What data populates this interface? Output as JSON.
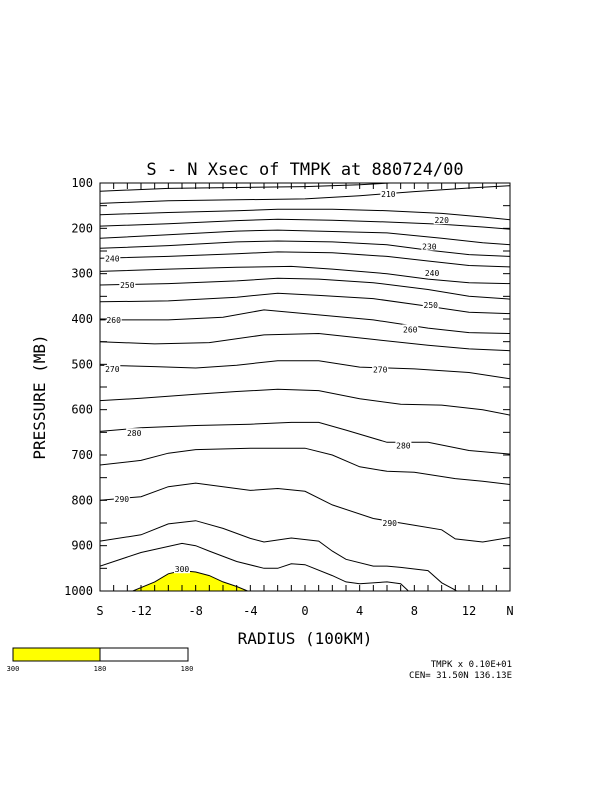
{
  "chart_data": {
    "type": "contour",
    "title": "S - N Xsec of TMPK at 880724/00",
    "xlabel": "RADIUS (100KM)",
    "ylabel": "PRESSURE (MB)",
    "x_ticks": [
      {
        "value": -15,
        "label": "S"
      },
      {
        "value": -12,
        "label": "-12"
      },
      {
        "value": -8,
        "label": "-8"
      },
      {
        "value": -4,
        "label": "-4"
      },
      {
        "value": 0,
        "label": "0"
      },
      {
        "value": 4,
        "label": "4"
      },
      {
        "value": 8,
        "label": "8"
      },
      {
        "value": 12,
        "label": "12"
      },
      {
        "value": 15,
        "label": "N"
      }
    ],
    "y_ticks": [
      100,
      200,
      300,
      400,
      500,
      600,
      700,
      800,
      900,
      1000
    ],
    "xlim": [
      -15,
      15
    ],
    "ylim": [
      1000,
      100
    ],
    "grid": false,
    "fill_above": 300,
    "fill_color": "#ffff00",
    "contours": [
      {
        "level": 210,
        "points": [
          [
            -15,
            118
          ],
          [
            -10,
            112
          ],
          [
            -5,
            110
          ],
          [
            0,
            108
          ],
          [
            4,
            104
          ],
          [
            8,
            97
          ],
          [
            11,
            91
          ],
          [
            15,
            86
          ]
        ]
      },
      {
        "level": null,
        "points": [
          [
            -15,
            145
          ],
          [
            -10,
            139
          ],
          [
            -5,
            137
          ],
          [
            0,
            135
          ],
          [
            4,
            128
          ],
          [
            8,
            119
          ],
          [
            12,
            111
          ],
          [
            15,
            106
          ]
        ]
      },
      {
        "level": 220,
        "points": [
          [
            -15,
            170
          ],
          [
            -10,
            165
          ],
          [
            -5,
            161
          ],
          [
            -2,
            158
          ],
          [
            2,
            158
          ],
          [
            6,
            161
          ],
          [
            10,
            167
          ],
          [
            13,
            175
          ],
          [
            15,
            181
          ]
        ]
      },
      {
        "level": null,
        "points": [
          [
            -15,
            195
          ],
          [
            -10,
            190
          ],
          [
            -5,
            183
          ],
          [
            -2,
            180
          ],
          [
            2,
            182
          ],
          [
            6,
            186
          ],
          [
            10,
            191
          ],
          [
            13,
            197
          ],
          [
            15,
            202
          ]
        ]
      },
      {
        "level": 230,
        "points": [
          [
            -15,
            222
          ],
          [
            -10,
            214
          ],
          [
            -5,
            206
          ],
          [
            -2,
            204
          ],
          [
            2,
            207
          ],
          [
            6,
            210
          ],
          [
            10,
            222
          ],
          [
            13,
            232
          ],
          [
            15,
            236
          ]
        ]
      },
      {
        "level": null,
        "points": [
          [
            -15,
            244
          ],
          [
            -10,
            238
          ],
          [
            -5,
            230
          ],
          [
            -2,
            228
          ],
          [
            2,
            230
          ],
          [
            6,
            236
          ],
          [
            9,
            248
          ],
          [
            12,
            258
          ],
          [
            15,
            262
          ]
        ]
      },
      {
        "level": 240,
        "points": [
          [
            -15,
            266
          ],
          [
            -10,
            262
          ],
          [
            -5,
            256
          ],
          [
            -2,
            252
          ],
          [
            2,
            254
          ],
          [
            6,
            262
          ],
          [
            9,
            272
          ],
          [
            12,
            282
          ],
          [
            15,
            285
          ]
        ]
      },
      {
        "level": null,
        "points": [
          [
            -15,
            295
          ],
          [
            -10,
            290
          ],
          [
            -5,
            286
          ],
          [
            -1,
            284
          ],
          [
            2,
            290
          ],
          [
            6,
            300
          ],
          [
            9,
            312
          ],
          [
            12,
            320
          ],
          [
            15,
            322
          ]
        ]
      },
      {
        "level": 250,
        "points": [
          [
            -15,
            325
          ],
          [
            -10,
            322
          ],
          [
            -5,
            316
          ],
          [
            -2,
            310
          ],
          [
            1,
            312
          ],
          [
            5,
            320
          ],
          [
            9,
            335
          ],
          [
            12,
            350
          ],
          [
            15,
            356
          ]
        ]
      },
      {
        "level": null,
        "points": [
          [
            -15,
            362
          ],
          [
            -10,
            360
          ],
          [
            -5,
            352
          ],
          [
            -2,
            343
          ],
          [
            1,
            348
          ],
          [
            5,
            355
          ],
          [
            9,
            372
          ],
          [
            12,
            385
          ],
          [
            15,
            388
          ]
        ]
      },
      {
        "level": 260,
        "points": [
          [
            -15,
            402
          ],
          [
            -10,
            402
          ],
          [
            -6,
            396
          ],
          [
            -3,
            380
          ],
          [
            0,
            388
          ],
          [
            5,
            402
          ],
          [
            9,
            420
          ],
          [
            12,
            430
          ],
          [
            15,
            432
          ]
        ]
      },
      {
        "level": null,
        "points": [
          [
            -15,
            450
          ],
          [
            -11,
            455
          ],
          [
            -7,
            452
          ],
          [
            -3,
            435
          ],
          [
            1,
            432
          ],
          [
            5,
            445
          ],
          [
            9,
            458
          ],
          [
            12,
            466
          ],
          [
            15,
            470
          ]
        ]
      },
      {
        "level": 270,
        "points": [
          [
            -15,
            502
          ],
          [
            -11,
            505
          ],
          [
            -8,
            508
          ],
          [
            -5,
            502
          ],
          [
            -2,
            492
          ],
          [
            1,
            492
          ],
          [
            4,
            506
          ],
          [
            8,
            510
          ],
          [
            12,
            518
          ],
          [
            15,
            532
          ]
        ]
      },
      {
        "level": null,
        "points": [
          [
            -15,
            580
          ],
          [
            -12,
            575
          ],
          [
            -8,
            566
          ],
          [
            -5,
            560
          ],
          [
            -2,
            555
          ],
          [
            1,
            558
          ],
          [
            4,
            576
          ],
          [
            7,
            588
          ],
          [
            10,
            590
          ],
          [
            13,
            600
          ],
          [
            15,
            612
          ]
        ]
      },
      {
        "level": 280,
        "points": [
          [
            -15,
            648
          ],
          [
            -12,
            640
          ],
          [
            -8,
            635
          ],
          [
            -4,
            632
          ],
          [
            -1,
            628
          ],
          [
            1,
            628
          ],
          [
            3,
            645
          ],
          [
            6,
            672
          ],
          [
            9,
            672
          ],
          [
            12,
            690
          ],
          [
            15,
            698
          ]
        ]
      },
      {
        "level": null,
        "points": [
          [
            -15,
            722
          ],
          [
            -12,
            712
          ],
          [
            -10,
            696
          ],
          [
            -8,
            688
          ],
          [
            -4,
            685
          ],
          [
            0,
            685
          ],
          [
            2,
            700
          ],
          [
            4,
            726
          ],
          [
            6,
            736
          ],
          [
            8,
            738
          ],
          [
            11,
            752
          ],
          [
            13,
            758
          ],
          [
            15,
            765
          ]
        ]
      },
      {
        "level": 290,
        "points": [
          [
            -15,
            800
          ],
          [
            -12,
            792
          ],
          [
            -10,
            770
          ],
          [
            -8,
            762
          ],
          [
            -6,
            770
          ],
          [
            -4,
            778
          ],
          [
            -2,
            774
          ],
          [
            0,
            780
          ],
          [
            2,
            810
          ],
          [
            5,
            840
          ],
          [
            8,
            855
          ],
          [
            10,
            865
          ],
          [
            11,
            885
          ],
          [
            13,
            892
          ],
          [
            15,
            882
          ]
        ]
      },
      {
        "level": null,
        "points": [
          [
            -15,
            890
          ],
          [
            -12,
            876
          ],
          [
            -10,
            852
          ],
          [
            -8,
            845
          ],
          [
            -6,
            862
          ],
          [
            -4,
            884
          ],
          [
            -3,
            892
          ],
          [
            -1,
            883
          ],
          [
            1,
            890
          ],
          [
            2,
            912
          ],
          [
            3,
            930
          ],
          [
            5,
            945
          ],
          [
            6,
            945
          ],
          [
            7,
            948
          ],
          [
            9,
            955
          ],
          [
            10,
            982
          ],
          [
            11,
            998
          ],
          [
            12,
            1020
          ]
        ]
      },
      {
        "level": null,
        "points": [
          [
            -15,
            945
          ],
          [
            -12,
            915
          ],
          [
            -9,
            895
          ],
          [
            -8,
            900
          ],
          [
            -7,
            912
          ],
          [
            -5,
            935
          ],
          [
            -3,
            950
          ],
          [
            -2,
            950
          ],
          [
            -1,
            940
          ],
          [
            0,
            942
          ],
          [
            2,
            966
          ],
          [
            3,
            980
          ],
          [
            4,
            984
          ],
          [
            6,
            980
          ],
          [
            7,
            984
          ],
          [
            7.5,
            998
          ],
          [
            8,
            1015
          ]
        ]
      }
    ],
    "contour_labels": [
      {
        "level": "210",
        "x": 6.1,
        "y": 124
      },
      {
        "level": "220",
        "x": 10.0,
        "y": 182
      },
      {
        "level": "230",
        "x": 9.1,
        "y": 240
      },
      {
        "level": "240",
        "x": -14.1,
        "y": 266
      },
      {
        "level": "240",
        "x": 9.3,
        "y": 299
      },
      {
        "level": "250",
        "x": -13.0,
        "y": 325
      },
      {
        "level": "250",
        "x": 9.2,
        "y": 369
      },
      {
        "level": "260",
        "x": -14.0,
        "y": 402
      },
      {
        "level": "260",
        "x": 7.7,
        "y": 423
      },
      {
        "level": "270",
        "x": -14.1,
        "y": 510
      },
      {
        "level": "270",
        "x": 5.5,
        "y": 511
      },
      {
        "level": "280",
        "x": -12.5,
        "y": 652
      },
      {
        "level": "280",
        "x": 7.2,
        "y": 679
      },
      {
        "level": "290",
        "x": -13.4,
        "y": 797
      },
      {
        "level": "290",
        "x": 6.2,
        "y": 850
      },
      {
        "level": "300",
        "x": -9.0,
        "y": 952
      }
    ],
    "colorbar": {
      "colors": [
        "#ffff00",
        "#ffffff"
      ],
      "labels": [
        "300",
        "180",
        "180"
      ]
    },
    "footer": {
      "scale": "TMPK x  0.10E+01",
      "center": "CEN= 31.50N  136.13E"
    }
  }
}
